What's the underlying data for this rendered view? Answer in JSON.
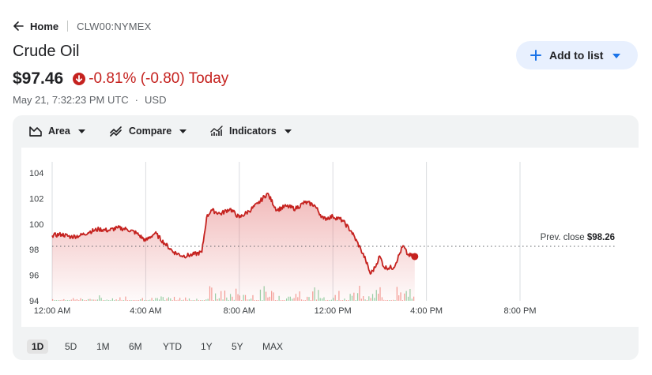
{
  "breadcrumb": {
    "home": "Home",
    "ticker": "CLW00:NYMEX"
  },
  "quote": {
    "name": "Crude Oil",
    "price": "$97.46",
    "change": "-0.81% (-0.80) Today",
    "timestamp": "May 21, 7:32:23 PM UTC",
    "currency": "USD"
  },
  "add_to_list": {
    "label": "Add to list"
  },
  "toolbar": {
    "area": "Area",
    "compare": "Compare",
    "indicators": "Indicators"
  },
  "colors": {
    "down": "#c5221f",
    "accent": "#1a73e8"
  },
  "ranges": [
    "1D",
    "5D",
    "1M",
    "6M",
    "YTD",
    "1Y",
    "5Y",
    "MAX"
  ],
  "selected_range": "1D",
  "chart_data": {
    "type": "area",
    "y_ticks": [
      "104",
      "102",
      "100",
      "98",
      "96",
      "94"
    ],
    "x_ticks": [
      "12:00 AM",
      "4:00 AM",
      "8:00 AM",
      "12:00 PM",
      "4:00 PM",
      "8:00 PM"
    ],
    "ylim": [
      94,
      105
    ],
    "xlim_hours": [
      0,
      20
    ],
    "prev_close": {
      "label": "Prev. close",
      "value": 98.26,
      "value_label": "$98.26"
    },
    "series": [
      {
        "x_hours": [
          0,
          0.4,
          0.8,
          1.2,
          1.6,
          2.0,
          2.4,
          2.8,
          3.2,
          3.6,
          4.0,
          4.4,
          4.8,
          5.2,
          5.6,
          6.0,
          6.4,
          6.6,
          6.8,
          7.2,
          7.6,
          8.0,
          8.4,
          8.8,
          9.2,
          9.6,
          10.0,
          10.4,
          10.8,
          11.2,
          11.6,
          12.0,
          12.4,
          12.8,
          13.2,
          13.4,
          13.6,
          13.8,
          14.0,
          14.2,
          14.6,
          15.0,
          15.2,
          15.5
        ],
        "y": [
          99.1,
          99.2,
          99.0,
          99.1,
          99.4,
          99.6,
          99.5,
          99.7,
          99.6,
          99.3,
          98.7,
          99.3,
          98.5,
          97.8,
          97.5,
          97.6,
          97.8,
          100.5,
          101.1,
          100.8,
          101.2,
          100.5,
          101.0,
          101.6,
          102.4,
          101.1,
          101.4,
          101.2,
          101.7,
          101.5,
          100.4,
          100.6,
          100.3,
          99.4,
          98.0,
          97.2,
          96.1,
          96.6,
          97.5,
          96.6,
          96.6,
          98.3,
          97.6,
          97.46
        ]
      }
    ]
  }
}
